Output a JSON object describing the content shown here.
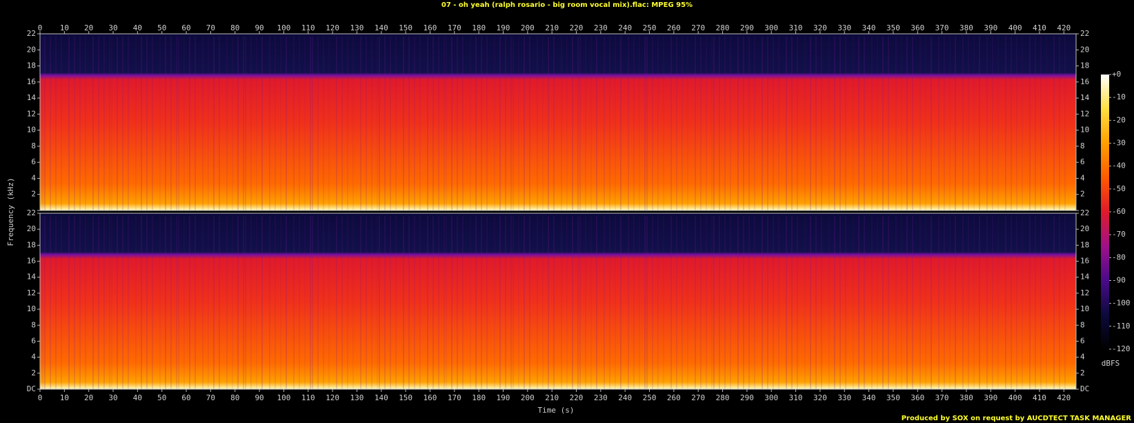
{
  "chart_data": {
    "type": "spectrogram",
    "title": "07 - oh yeah (ralph rosario - big room vocal mix).flac: MPEG 95%",
    "xlabel": "Time (s)",
    "ylabel": "Frequency (kHz)",
    "xlim": [
      0,
      425
    ],
    "xticks": [
      0,
      10,
      20,
      30,
      40,
      50,
      60,
      70,
      80,
      90,
      100,
      110,
      120,
      130,
      140,
      150,
      160,
      170,
      180,
      190,
      200,
      210,
      220,
      230,
      240,
      250,
      260,
      270,
      280,
      290,
      300,
      310,
      320,
      330,
      340,
      350,
      360,
      370,
      380,
      390,
      400,
      410,
      420
    ],
    "ylim": [
      0,
      22
    ],
    "yticks": [
      {
        "value": 0,
        "label": "DC"
      },
      2,
      4,
      6,
      8,
      10,
      12,
      14,
      16,
      18,
      20,
      22
    ],
    "colormap": [
      "#000000",
      "#0c0a3c",
      "#4a0a8a",
      "#a0108a",
      "#e01a2a",
      "#ff5a00",
      "#ffa000",
      "#ffe040",
      "#ffffff"
    ],
    "colorbar": {
      "label": "dBFS",
      "lim": [
        -120,
        0
      ],
      "ticks": [
        {
          "value": 0,
          "label": "+0"
        },
        -10,
        -20,
        -30,
        -40,
        -50,
        -60,
        -70,
        -80,
        -90,
        -100,
        -110,
        -120
      ]
    },
    "footer": "Produced by SOX on request by AUCDTECT TASK MANAGER"
  }
}
